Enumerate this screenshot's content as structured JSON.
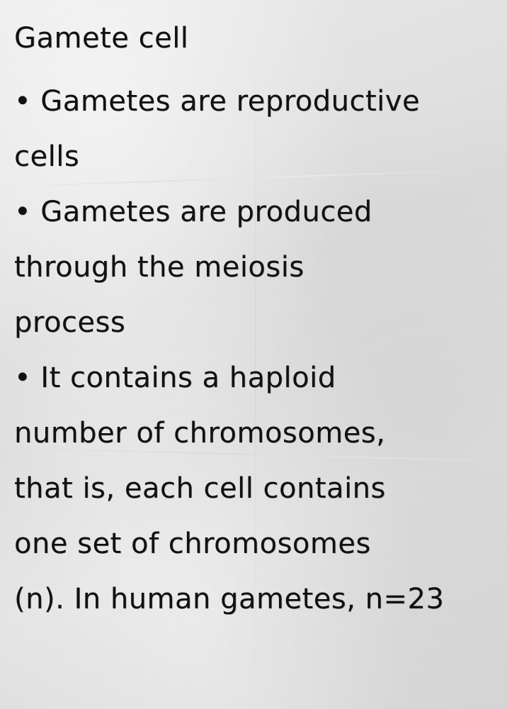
{
  "note": {
    "title": "Gamete cell",
    "lines": [
      "• Gametes are reproductive",
      "cells",
      "• Gametes are produced",
      "through the meiosis",
      "process",
      "• It contains a haploid",
      "number of chromosomes,",
      "that is, each cell contains",
      "one set of chromosomes",
      "(n). In human gametes, n=23"
    ]
  }
}
